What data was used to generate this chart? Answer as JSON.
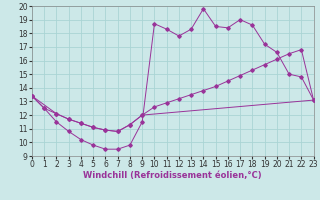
{
  "xlabel": "Windchill (Refroidissement éolien,°C)",
  "xlim": [
    0,
    23
  ],
  "ylim": [
    9,
    20
  ],
  "xticks": [
    0,
    1,
    2,
    3,
    4,
    5,
    6,
    7,
    8,
    9,
    10,
    11,
    12,
    13,
    14,
    15,
    16,
    17,
    18,
    19,
    20,
    21,
    22,
    23
  ],
  "yticks": [
    9,
    10,
    11,
    12,
    13,
    14,
    15,
    16,
    17,
    18,
    19,
    20
  ],
  "bg_color": "#cce8e8",
  "line_color": "#993399",
  "grid_color": "#aad4d4",
  "line1_x": [
    0,
    1,
    2,
    3,
    4,
    5,
    6,
    7,
    8,
    9,
    10,
    11,
    12,
    13,
    14,
    15,
    16,
    17,
    18,
    19,
    20,
    21,
    22,
    23
  ],
  "line1_y": [
    13.4,
    12.5,
    11.5,
    10.8,
    10.2,
    9.8,
    9.5,
    9.5,
    9.8,
    11.5,
    18.7,
    18.3,
    17.8,
    18.3,
    19.8,
    18.5,
    18.4,
    19.0,
    18.6,
    17.2,
    16.6,
    15.0,
    14.8,
    13.1
  ],
  "line2_x": [
    0,
    1,
    2,
    3,
    4,
    5,
    6,
    7,
    8,
    9,
    10,
    11,
    12,
    13,
    14,
    15,
    16,
    17,
    18,
    19,
    20,
    21,
    22,
    23
  ],
  "line2_y": [
    13.4,
    12.5,
    12.1,
    11.7,
    11.4,
    11.1,
    10.9,
    10.8,
    11.3,
    12.0,
    12.6,
    12.9,
    13.2,
    13.5,
    13.8,
    14.1,
    14.5,
    14.9,
    15.3,
    15.7,
    16.1,
    16.5,
    16.8,
    13.1
  ],
  "line3_x": [
    0,
    2,
    3,
    4,
    5,
    6,
    7,
    8,
    9,
    23
  ],
  "line3_y": [
    13.4,
    12.1,
    11.7,
    11.4,
    11.1,
    10.9,
    10.8,
    11.3,
    12.0,
    13.1
  ],
  "tick_fontsize": 5.5,
  "xlabel_fontsize": 6.0,
  "marker_size": 1.8,
  "line_width": 0.7
}
